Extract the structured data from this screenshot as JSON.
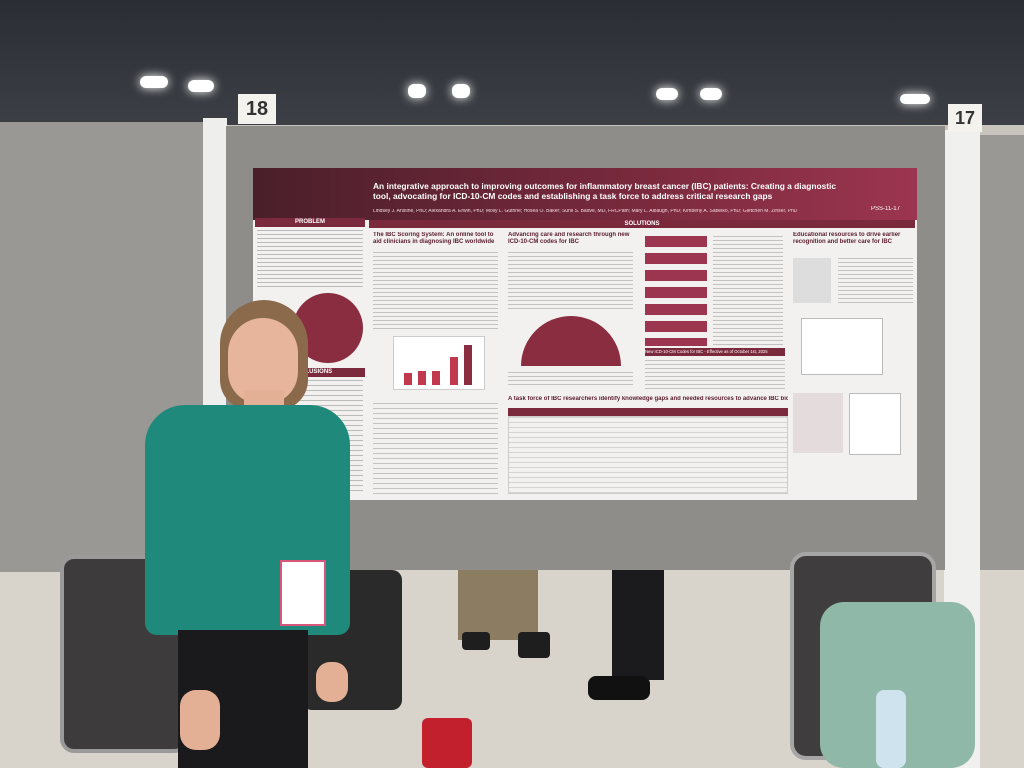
{
  "booth_numbers": [
    "18",
    "17"
  ],
  "poster": {
    "title": "An integrative approach to improving outcomes for inflammatory breast cancer (IBC) patients: Creating a diagnostic tool, advocating for ICD-10-CM codes and establishing a task force to address critical research gaps",
    "authors": "Lindsey J. Anstine, PhD; Alexandra A. Erwin, PhD; Molly L. Guthrie; Hosea O. Baker; Sunil S. Badve, MD, FRCPath; Mary L. Albaugh, PhD; Kimberly A. Sabelko, PhD; Gletchen M. Zinser, PhD",
    "code": "PSS-11-17",
    "sections": {
      "problem": "PROBLEM",
      "solutions": "SOLUTIONS",
      "conclusions": "CONCLUSIONS",
      "scoring": "The IBC Scoring System: An online tool to aid clinicians in diagnosing IBC worldwide",
      "codes": "Advancing care and research through new ICD-10-CM codes for IBC",
      "education": "Educational resources to drive earlier recognition and better care for IBC",
      "task_force": "A task force of IBC researchers identify knowledge gaps and needed resources to advance IBC biology",
      "new_codes": "New ICD-10-CM Codes for IBC - Effective as of October 1st, 2025"
    }
  }
}
